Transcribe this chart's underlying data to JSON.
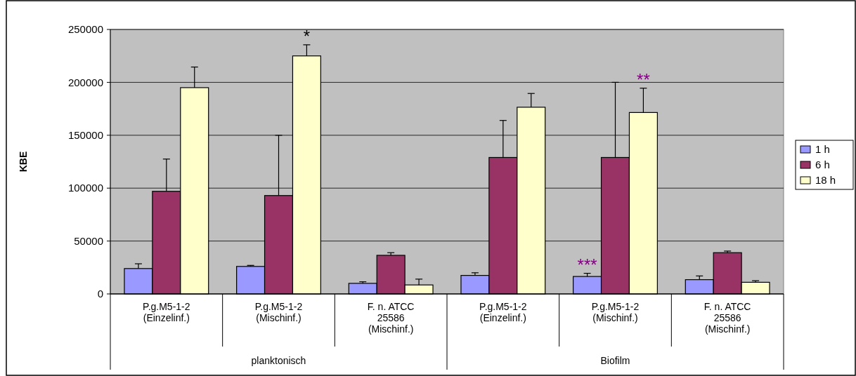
{
  "chart_data": {
    "type": "bar",
    "ylabel": "KBE",
    "categories": [
      "P.g.M5-1-2\n(Einzelinf.)",
      "P.g.M5-1-2\n(Mischinf.)",
      "F. n. ATCC\n25586\n(Mischinf.)",
      "P.g.M5-1-2\n(Einzelinf.)",
      "P.g.M5-1-2\n(Mischinf.)",
      "F. n. ATCC\n25586\n(Mischinf.)"
    ],
    "series": [
      {
        "name": "1 h",
        "color": "#9999ff",
        "values": [
          24000,
          26000,
          10000,
          17500,
          16500,
          13500
        ],
        "errors": [
          [
            24000,
            28500
          ],
          [
            26000,
            27000
          ],
          [
            10000,
            11500
          ],
          [
            17500,
            20000
          ],
          [
            16500,
            19500
          ],
          [
            13500,
            17000
          ]
        ]
      },
      {
        "name": "6 h",
        "color": "#993366",
        "values": [
          97000,
          93000,
          36500,
          129000,
          129000,
          39000
        ],
        "errors": [
          [
            97000,
            127500
          ],
          [
            93000,
            150000
          ],
          [
            36500,
            39000
          ],
          [
            129000,
            164000
          ],
          [
            129000,
            200000
          ],
          [
            39000,
            40500
          ]
        ]
      },
      {
        "name": "18 h",
        "color": "#ffffcc",
        "values": [
          195000,
          225000,
          8500,
          176500,
          171500,
          11000
        ],
        "errors": [
          [
            195000,
            214500
          ],
          [
            225000,
            235500
          ],
          [
            8500,
            14000
          ],
          [
            176500,
            189500
          ],
          [
            171500,
            194500
          ],
          [
            11000,
            12500
          ]
        ]
      }
    ],
    "ylim": [
      0,
      250000
    ],
    "yticks": [
      0,
      50000,
      100000,
      150000,
      200000,
      250000
    ],
    "grid": "y",
    "legend": "right",
    "annotations": [
      "planktonisch",
      "Biofilm",
      {
        "text": "*",
        "y": 235500
      },
      {
        "text": "***",
        "y": 19500
      },
      {
        "text": "**",
        "y": 194500
      }
    ]
  }
}
